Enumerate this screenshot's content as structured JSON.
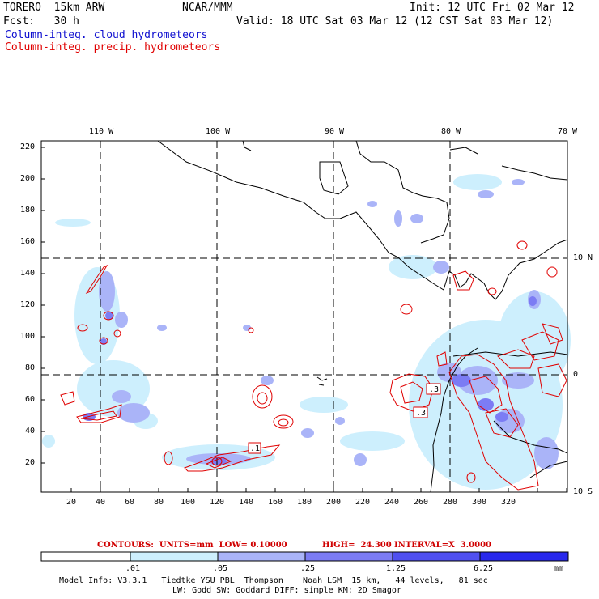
{
  "header": {
    "model": "TORERO  15km ARW",
    "center": "NCAR/MMM",
    "init": "Init: 12 UTC Fri 02 Mar 12",
    "fcst": "Fcst:   30 h",
    "valid": "Valid: 18 UTC Sat 03 Mar 12 (12 CST Sat 03 Mar 12)",
    "field1": "Column-integ. cloud hydrometeors",
    "field2": "Column-integ. precip. hydrometeors"
  },
  "colors": {
    "field1": "#1010d0",
    "field2": "#e00000",
    "shade": [
      "#ffffff",
      "#cdeffd",
      "#aab4f8",
      "#7c7cf4",
      "#5050f0",
      "#2828ec"
    ]
  },
  "map": {
    "lon_labels": [
      "110 W",
      "100 W",
      "90 W",
      "80 W",
      "70 W"
    ],
    "lat_labels": [
      "10 N",
      "0",
      "10 S"
    ],
    "y_ticks": [
      "220",
      "200",
      "180",
      "160",
      "140",
      "120",
      "100",
      "80",
      "60",
      "40",
      "20"
    ],
    "x_ticks": [
      "20",
      "40",
      "60",
      "80",
      "100",
      "120",
      "140",
      "160",
      "180",
      "200",
      "220",
      "240",
      "260",
      "280",
      "300",
      "320"
    ],
    "box_labels": [
      ".1",
      ".3",
      ".3"
    ]
  },
  "contours": {
    "label": "CONTOURS:  UNITS=mm  LOW= 0.10000",
    "high": "HIGH=  24.300",
    "interval": "INTERVAL=X  3.0000"
  },
  "colorbar": {
    "values": [
      ".01",
      ".05",
      ".25",
      "1.25",
      "6.25"
    ],
    "unit": "mm"
  },
  "footer": {
    "line1": "Model Info: V3.3.1   Tiedtke YSU PBL  Thompson    Noah LSM  15 km,   44 levels,   81 sec",
    "line2": "LW: Godd SW: Goddard DIFF: simple KM: 2D Smagor"
  }
}
